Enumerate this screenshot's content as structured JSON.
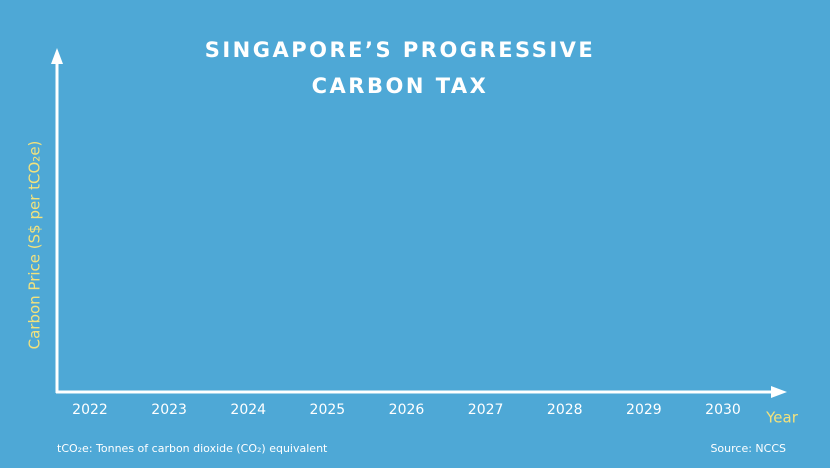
{
  "chart_data": {
    "type": "bar",
    "title": [
      "SINGAPORE’S PROGRESSIVE",
      "CARBON TAX"
    ],
    "y_label": "Carbon Price (S$ per tCO₂e)",
    "x_label": "Year",
    "categories": [
      "2022",
      "2023",
      "2024",
      "2025",
      "2026",
      "2027",
      "2028",
      "2029",
      "2030"
    ],
    "footnote": "tCO₂e: Tonnes of carbon dioxide (CO₂) equivalent",
    "source": "Source: NCCS"
  }
}
